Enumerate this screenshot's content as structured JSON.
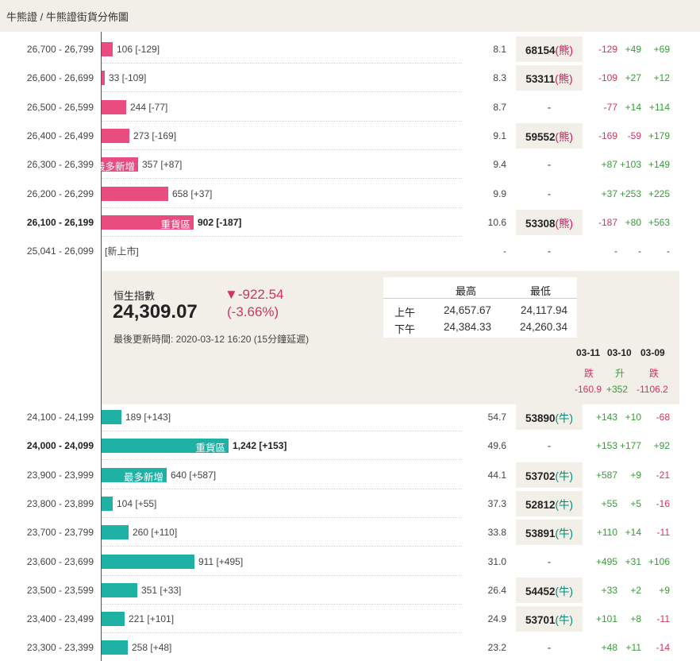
{
  "breadcrumb": "牛熊證 / 牛熊證街貨分佈圖",
  "bear_rows": [
    {
      "range": "26,700 - 26,799",
      "count": "106 [-129]",
      "bar_pct": 0.031,
      "leverage": "8.1",
      "code": "68154",
      "kind": "(熊)",
      "chg1": "-129",
      "chg2": "+49",
      "chg3": "+69"
    },
    {
      "range": "26,600 - 26,699",
      "count": "33 [-109]",
      "bar_pct": 0.0096,
      "leverage": "8.3",
      "code": "53311",
      "kind": "(熊)",
      "chg1": "-109",
      "chg2": "+27",
      "chg3": "+12"
    },
    {
      "range": "26,500 - 26,599",
      "count": "244 [-77]",
      "bar_pct": 0.069,
      "leverage": "8.7",
      "code": "-",
      "kind": "",
      "chg1": "-77",
      "chg2": "+14",
      "chg3": "+114"
    },
    {
      "range": "26,400 - 26,499",
      "count": "273 [-169]",
      "bar_pct": 0.077,
      "leverage": "9.1",
      "code": "59552",
      "kind": "(熊)",
      "chg1": "-169",
      "chg2": "-59",
      "chg3": "+179"
    },
    {
      "range": "26,300 - 26,399",
      "count": "357 [+87]",
      "bar_pct": 0.101,
      "tag": "最多新增",
      "leverage": "9.4",
      "code": "-",
      "kind": "",
      "chg1": "+87",
      "chg2": "+103",
      "chg3": "+149"
    },
    {
      "range": "26,200 - 26,299",
      "count": "658 [+37]",
      "bar_pct": 0.186,
      "leverage": "9.9",
      "code": "-",
      "kind": "",
      "chg1": "+37",
      "chg2": "+253",
      "chg3": "+225"
    },
    {
      "range": "26,100 - 26,199",
      "count": "902 [-187]",
      "bar_pct": 0.256,
      "tag": "重貨區",
      "bold": true,
      "leverage": "10.6",
      "code": "53308",
      "kind": "(熊)",
      "chg1": "-187",
      "chg2": "+80",
      "chg3": "+563"
    }
  ],
  "new_row": {
    "range": "25,041 - 26,099",
    "label": "[新上市]",
    "leverage": "-",
    "code": "-",
    "chg1": "-",
    "chg2": "-",
    "chg3": "-"
  },
  "index": {
    "name": "恒生指數",
    "value": "24,309.07",
    "change": "▼-922.54",
    "pct": "(-3.66%)",
    "updated": "最後更新時間: 2020-03-12 16:20 (15分鐘延遲)",
    "high_label": "最高",
    "low_label": "最低",
    "am_label": "上午",
    "pm_label": "下午",
    "am_high": "24,657.67",
    "am_low": "24,117.94",
    "pm_high": "24,384.33",
    "pm_low": "24,260.34",
    "days": [
      {
        "date": "03-11",
        "status": "跌",
        "value": "-160.9",
        "dir": "neg"
      },
      {
        "date": "03-10",
        "status": "升",
        "value": "+352",
        "dir": "pos"
      },
      {
        "date": "03-09",
        "status": "跌",
        "value": "-1106.2",
        "dir": "neg"
      }
    ]
  },
  "bull_rows": [
    {
      "range": "24,100 - 24,199",
      "count": "189 [+143]",
      "bar_pct": 0.054,
      "leverage": "54.7",
      "code": "53890",
      "kind": "(牛)",
      "chg1": "+143",
      "chg2": "+10",
      "chg3": "-68"
    },
    {
      "range": "24,000 - 24,099",
      "count": "1,242 [+153]",
      "bar_pct": 0.352,
      "tag": "重貨區",
      "bold": true,
      "leverage": "49.6",
      "code": "-",
      "kind": "",
      "chg1": "+153",
      "chg2": "+177",
      "chg3": "+92"
    },
    {
      "range": "23,900 - 23,999",
      "count": "640 [+587]",
      "bar_pct": 0.181,
      "tag": "最多新增",
      "leverage": "44.1",
      "code": "53702",
      "kind": "(牛)",
      "chg1": "+587",
      "chg2": "+9",
      "chg3": "-21"
    },
    {
      "range": "23,800 - 23,899",
      "count": "104 [+55]",
      "bar_pct": 0.03,
      "leverage": "37.3",
      "code": "52812",
      "kind": "(牛)",
      "chg1": "+55",
      "chg2": "+5",
      "chg3": "-16"
    },
    {
      "range": "23,700 - 23,799",
      "count": "260 [+110]",
      "bar_pct": 0.074,
      "leverage": "33.8",
      "code": "53891",
      "kind": "(牛)",
      "chg1": "+110",
      "chg2": "+14",
      "chg3": "-11"
    },
    {
      "range": "23,600 - 23,699",
      "count": "911 [+495]",
      "bar_pct": 0.258,
      "leverage": "31.0",
      "code": "-",
      "kind": "",
      "chg1": "+495",
      "chg2": "+31",
      "chg3": "+106"
    },
    {
      "range": "23,500 - 23,599",
      "count": "351 [+33]",
      "bar_pct": 0.1,
      "leverage": "26.4",
      "code": "54452",
      "kind": "(牛)",
      "chg1": "+33",
      "chg2": "+2",
      "chg3": "+9"
    },
    {
      "range": "23,400 - 23,499",
      "count": "221 [+101]",
      "bar_pct": 0.063,
      "leverage": "24.9",
      "code": "53701",
      "kind": "(牛)",
      "chg1": "+101",
      "chg2": "+8",
      "chg3": "-11"
    },
    {
      "range": "23,300 - 23,399",
      "count": "258 [+48]",
      "bar_pct": 0.073,
      "leverage": "23.2",
      "code": "-",
      "kind": "",
      "chg1": "+48",
      "chg2": "+11",
      "chg3": "-14"
    }
  ],
  "colors": {
    "bear": "#e94d80",
    "bull": "#1fb1a3",
    "negative": "#d1355a",
    "positive": "#3a9a3a"
  }
}
